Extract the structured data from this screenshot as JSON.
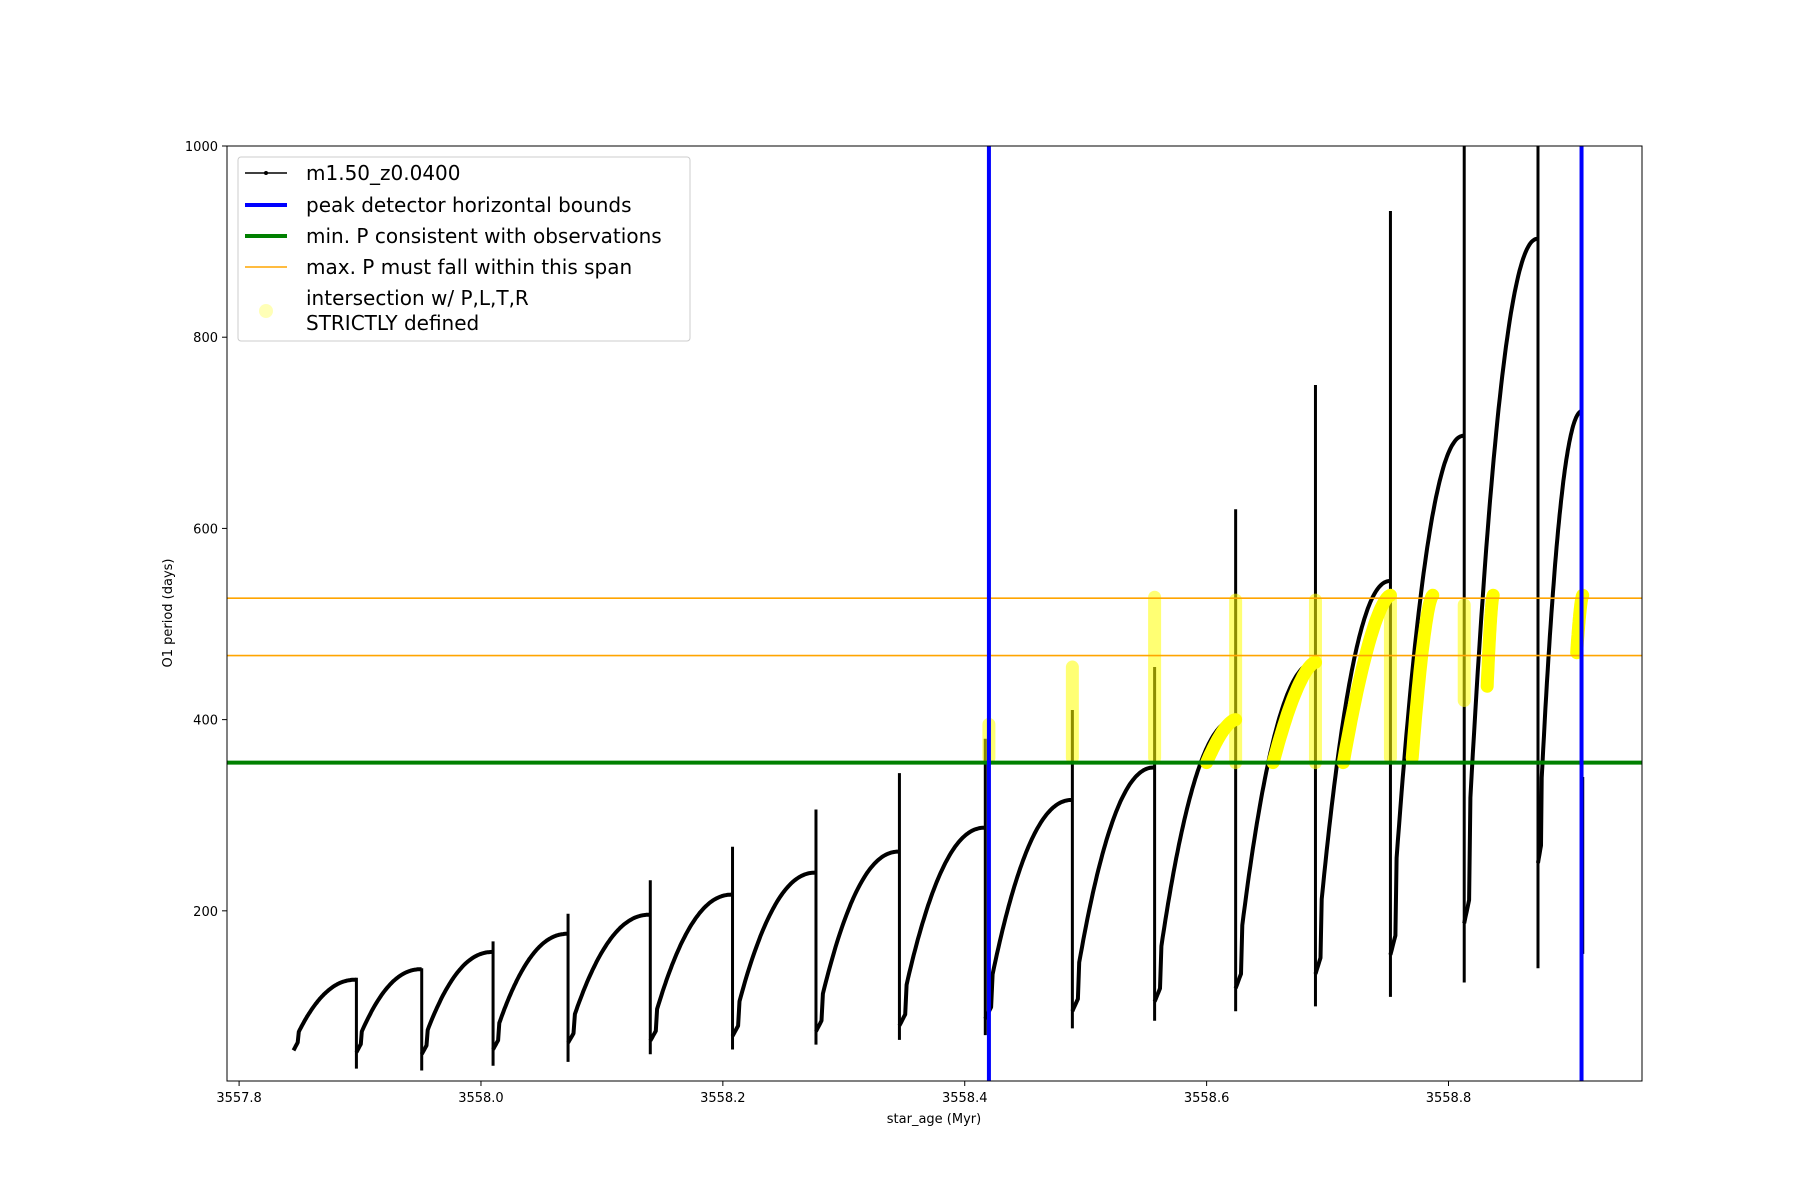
{
  "chart_data": {
    "type": "line",
    "xlabel": "star_age (Myr)",
    "ylabel": "O1 period (days)",
    "xlim": [
      3557.79,
      3558.96
    ],
    "ylim": [
      22,
      1000
    ],
    "x_ticks": [
      3557.8,
      3558.0,
      3558.2,
      3558.4,
      3558.6,
      3558.8
    ],
    "x_tick_labels": [
      "3557.8",
      "3558.0",
      "3558.2",
      "3558.4",
      "3558.6",
      "3558.8"
    ],
    "y_ticks": [
      200,
      400,
      600,
      800,
      1000
    ],
    "y_tick_labels": [
      "200",
      "400",
      "600",
      "800",
      "1000"
    ],
    "grid": false,
    "legend_position": "upper-left",
    "legend": [
      {
        "label": "m1.50_z0.0400",
        "style": "line-marker",
        "color": "#000000"
      },
      {
        "label": "peak detector horizontal bounds",
        "style": "thick-line",
        "color": "#0000ff"
      },
      {
        "label": "min. P consistent with observations",
        "style": "thick-line",
        "color": "#008000"
      },
      {
        "label": "max. P must fall within this span",
        "style": "thin-line",
        "color": "#ffa500"
      },
      {
        "label": "intersection w/ P,L,T,R",
        "label_line2": "STRICTLY defined",
        "style": "marker",
        "color": "#ffff00"
      }
    ],
    "series": [
      {
        "name": "m1.50_z0.0400",
        "color": "#000000",
        "cycles": [
          {
            "start": 3557.845,
            "end": 3557.897,
            "y0": 62,
            "ymax": 128,
            "spike_top": 130,
            "spike_bottom": 35
          },
          {
            "start": 3557.897,
            "end": 3557.951,
            "y0": 60,
            "ymax": 139,
            "spike_top": 140,
            "spike_bottom": 33
          },
          {
            "start": 3557.951,
            "end": 3558.01,
            "y0": 58,
            "ymax": 157,
            "spike_top": 168,
            "spike_bottom": 38
          },
          {
            "start": 3558.01,
            "end": 3558.072,
            "y0": 63,
            "ymax": 176,
            "spike_top": 197,
            "spike_bottom": 42
          },
          {
            "start": 3558.072,
            "end": 3558.14,
            "y0": 70,
            "ymax": 196,
            "spike_top": 232,
            "spike_bottom": 50
          },
          {
            "start": 3558.14,
            "end": 3558.208,
            "y0": 72,
            "ymax": 217,
            "spike_top": 267,
            "spike_bottom": 55
          },
          {
            "start": 3558.208,
            "end": 3558.277,
            "y0": 77,
            "ymax": 240,
            "spike_top": 306,
            "spike_bottom": 60
          },
          {
            "start": 3558.277,
            "end": 3558.346,
            "y0": 82,
            "ymax": 262,
            "spike_top": 344,
            "spike_bottom": 65
          },
          {
            "start": 3558.346,
            "end": 3558.417,
            "y0": 88,
            "ymax": 287,
            "spike_top": 380,
            "spike_bottom": 70
          },
          {
            "start": 3558.417,
            "end": 3558.489,
            "y0": 95,
            "ymax": 316,
            "spike_top": 410,
            "spike_bottom": 77
          },
          {
            "start": 3558.489,
            "end": 3558.557,
            "y0": 103,
            "ymax": 350,
            "spike_top": 455,
            "spike_bottom": 85
          },
          {
            "start": 3558.557,
            "end": 3558.624,
            "y0": 113,
            "ymax": 400,
            "spike_top": 620,
            "spike_bottom": 95
          },
          {
            "start": 3558.624,
            "end": 3558.69,
            "y0": 127,
            "ymax": 460,
            "spike_top": 750,
            "spike_bottom": 100
          },
          {
            "start": 3558.69,
            "end": 3558.752,
            "y0": 142,
            "ymax": 545,
            "spike_top": 932,
            "spike_bottom": 110
          },
          {
            "start": 3558.752,
            "end": 3558.813,
            "y0": 162,
            "ymax": 697,
            "spike_top": 1000,
            "spike_bottom": 125
          },
          {
            "start": 3558.813,
            "end": 3558.874,
            "y0": 195,
            "ymax": 903,
            "spike_top": 1000,
            "spike_bottom": 140
          },
          {
            "start": 3558.874,
            "end": 3558.911,
            "y0": 258,
            "ymax": 723,
            "spike_top": 340,
            "spike_bottom": 155
          }
        ]
      }
    ],
    "vlines": [
      {
        "x": 3558.42,
        "color": "#0000ff"
      },
      {
        "x": 3558.91,
        "color": "#0000ff"
      }
    ],
    "hlines": [
      {
        "y": 355,
        "color": "#008000"
      },
      {
        "y": 467,
        "color": "#ffa500"
      },
      {
        "y": 527,
        "color": "#ffa500"
      }
    ],
    "highlight_segments": [
      {
        "x": [
          3558.42,
          3558.421
        ],
        "y": [
          360,
          395
        ],
        "type": "spike"
      },
      {
        "x": [
          3558.489,
          3558.49
        ],
        "y": [
          360,
          455
        ],
        "type": "spike"
      },
      {
        "x": [
          3558.557,
          3558.558
        ],
        "y": [
          360,
          528
        ],
        "type": "spike"
      },
      {
        "x": [
          3558.6,
          3558.624
        ],
        "y": [
          355,
          400
        ],
        "type": "arc"
      },
      {
        "x": [
          3558.624,
          3558.625
        ],
        "y": [
          355,
          525
        ],
        "type": "spike"
      },
      {
        "x": [
          3558.655,
          3558.69
        ],
        "y": [
          355,
          460
        ],
        "type": "arc"
      },
      {
        "x": [
          3558.69,
          3558.691
        ],
        "y": [
          355,
          525
        ],
        "type": "spike"
      },
      {
        "x": [
          3558.713,
          3558.752
        ],
        "y": [
          355,
          530
        ],
        "type": "arc"
      },
      {
        "x": [
          3558.752,
          3558.753
        ],
        "y": [
          360,
          530
        ],
        "type": "spike"
      },
      {
        "x": [
          3558.77,
          3558.787
        ],
        "y": [
          360,
          530
        ],
        "type": "arc"
      },
      {
        "x": [
          3558.813,
          3558.814
        ],
        "y": [
          420,
          520
        ],
        "type": "spike"
      },
      {
        "x": [
          3558.832,
          3558.837
        ],
        "y": [
          435,
          530
        ],
        "type": "arc"
      },
      {
        "x": [
          3558.906,
          3558.911
        ],
        "y": [
          470,
          530
        ],
        "type": "arc"
      }
    ]
  }
}
